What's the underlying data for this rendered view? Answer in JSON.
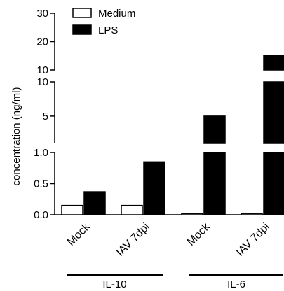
{
  "chart_data": {
    "type": "bar",
    "ylabel": "concentration (ng/ml)",
    "y_axis": {
      "broken": true,
      "segments": [
        {
          "range": [
            0,
            1.0
          ],
          "ticks": [
            "0.0",
            "0.5",
            "1.0"
          ]
        },
        {
          "range": [
            1.0,
            10
          ],
          "ticks": [
            "5",
            "10"
          ]
        },
        {
          "range": [
            10,
            30
          ],
          "ticks": [
            "10",
            "20",
            "30"
          ]
        }
      ]
    },
    "categories": [
      "Mock",
      "IAV 7dpi",
      "Mock",
      "IAV 7dpi"
    ],
    "groups": [
      {
        "label": "IL-10",
        "categories": [
          0,
          1
        ]
      },
      {
        "label": "IL-6",
        "categories": [
          2,
          3
        ]
      }
    ],
    "series": [
      {
        "name": "Medium",
        "color": "#ffffff",
        "values": [
          0.15,
          0.15,
          0.02,
          0.02
        ]
      },
      {
        "name": "LPS",
        "color": "#000000",
        "values": [
          0.37,
          0.85,
          5.0,
          15.0
        ]
      }
    ],
    "legend_position": "top-left"
  }
}
